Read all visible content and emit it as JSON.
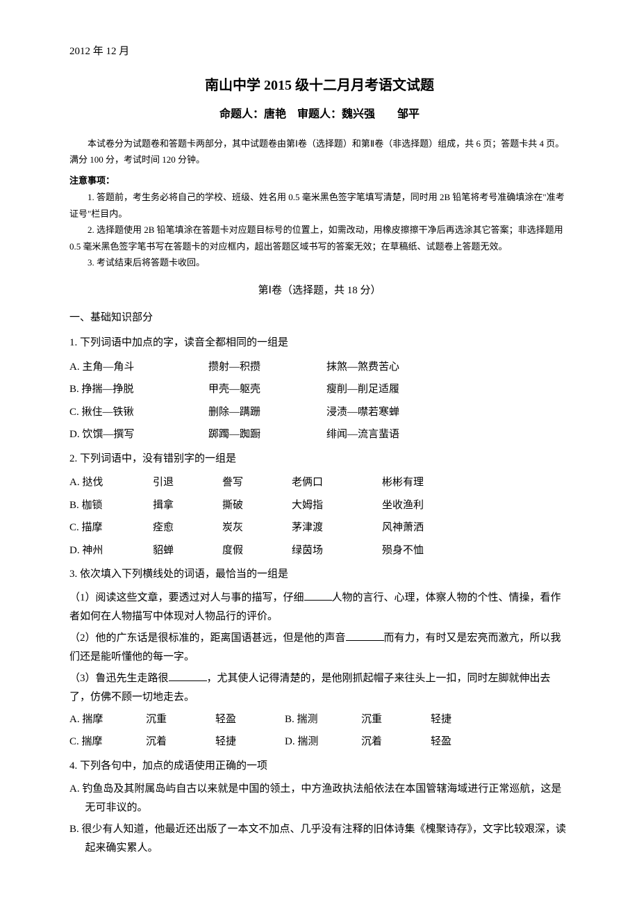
{
  "date_header": "2012 年 12 月",
  "title": "南山中学 2015 级十二月月考语文试题",
  "authors": "命题人：唐艳　审题人：魏兴强　　邹平",
  "intro": "本试卷分为试题卷和答题卡两部分，其中试题卷由第Ⅰ卷（选择题）和第Ⅱ卷（非选择题）组成，共 6 页；答题卡共 4 页。满分 100 分，考试时间 120 分钟。",
  "notice_head": "注意事项：",
  "notice_items": [
    "1. 答题前，考生务必将自己的学校、班级、姓名用 0.5 毫米黑色签字笔填写清楚，同时用 2B 铅笔将考号准确填涂在\"准考证号\"栏目内。",
    "2. 选择题使用 2B 铅笔填涂在答题卡对应题目标号的位置上，如需改动，用橡皮擦擦干净后再选涂其它答案；非选择题用 0.5 毫米黑色签字笔书写在答题卡的对应框内，超出答题区域书写的答案无效；在草稿纸、试题卷上答题无效。",
    "3. 考试结束后将答题卡收回。"
  ],
  "section_header": "第Ⅰ卷（选择题，共 18 分）",
  "section_label": "一、基础知识部分",
  "q1": {
    "stem": "1. 下列词语中加点的字，读音全都相同的一组是",
    "opts": [
      {
        "a": "A. 主角—角斗",
        "b": "攒射—积攒",
        "c": "抹煞—煞费苦心"
      },
      {
        "a": "B. 挣揣—挣脱",
        "b": "甲壳—躯壳",
        "c": "瘦削—削足适履"
      },
      {
        "a": "C. 揪住—铁锹",
        "b": "删除—蹒跚",
        "c": "浸渍—噤若寒蝉"
      },
      {
        "a": "D. 饮馔—撰写",
        "b": "踯躅—踟蹰",
        "c": "绯闻—流言蜚语"
      }
    ]
  },
  "q2": {
    "stem": "2. 下列词语中，没有错别字的一组是",
    "opts": [
      {
        "a": "A. 挞伐",
        "b": "引退",
        "c": "誊写",
        "d": "老俩口",
        "e": "彬彬有理"
      },
      {
        "a": "B. 枷锁",
        "b": "揖拿",
        "c": "撕破",
        "d": "大姆指",
        "e": "坐收渔利"
      },
      {
        "a": "C. 描摩",
        "b": "痊愈",
        "c": "炭灰",
        "d": "茅津渡",
        "e": "风神萧洒"
      },
      {
        "a": "D. 神州",
        "b": "貂蝉",
        "c": "度假",
        "d": "绿茵场",
        "e": "殒身不恤"
      }
    ]
  },
  "q3": {
    "stem": "3. 依次填入下列横线处的词语，最恰当的一组是",
    "sub1_pre": "（1）阅读这些文章，要透过对人与事的描写，仔细",
    "sub1_post": "人物的言行、心理，体察人物的个性、情操，看作者如何在人物描写中体现对人物品行的评价。",
    "sub2_pre": "（2）他的广东话是很标准的，距离国语甚远，但是他的声音",
    "sub2_post": "而有力，有时又是宏亮而激亢，所以我们还是能听懂他的每一字。",
    "sub3_pre": "（3）鲁迅先生走路很",
    "sub3_post": "，尤其使人记得清楚的，是他刚抓起帽子来往头上一扣，同时左脚就伸出去了，仿佛不顾一切地走去。",
    "opts": [
      {
        "lbl": "A. 揣摩",
        "b": "沉重",
        "c": "轻盈",
        "lbl2": "B. 揣测",
        "d": "沉重",
        "e": "轻捷"
      },
      {
        "lbl": "C. 揣摩",
        "b": "沉着",
        "c": "轻捷",
        "lbl2": "D. 揣测",
        "d": "沉着",
        "e": "轻盈"
      }
    ]
  },
  "q4": {
    "stem": "4. 下列各句中，加点的成语使用正确的一项",
    "optA": "A. 钓鱼岛及其附属岛屿自古以来就是中国的领土，中方渔政执法船依法在本国管辖海域进行正常巡航，这是无可非议的。",
    "optB": "B. 很少有人知道，他最近还出版了一本文不加点、几乎没有注释的旧体诗集《槐聚诗存》，文字比较艰深，读起来确实累人。"
  }
}
